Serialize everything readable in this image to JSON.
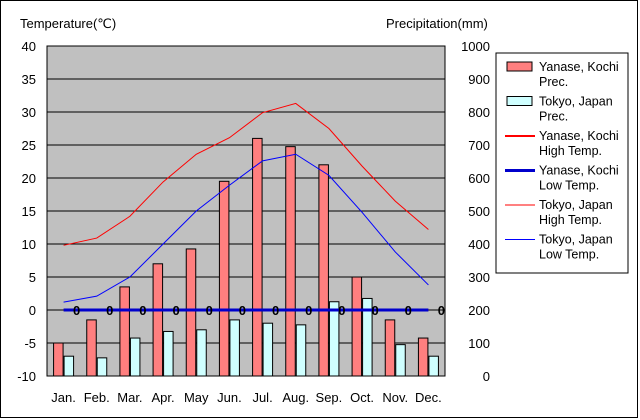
{
  "chart_data": {
    "type": "bar+line",
    "title": "",
    "categories": [
      "Jan.",
      "Feb.",
      "Mar.",
      "Apr.",
      "May",
      "Jun.",
      "Jul.",
      "Aug.",
      "Sep.",
      "Oct.",
      "Nov.",
      "Dec."
    ],
    "left_axis": {
      "label": "Temperature(℃)",
      "ylim": [
        -10,
        40
      ],
      "ticks": [
        -10,
        -5,
        0,
        5,
        10,
        15,
        20,
        25,
        30,
        35,
        40
      ]
    },
    "right_axis": {
      "label": "Precipitation(mm)",
      "ylim": [
        0,
        1000
      ],
      "ticks": [
        0,
        100,
        200,
        300,
        400,
        500,
        600,
        700,
        800,
        900,
        1000
      ]
    },
    "bar_series": [
      {
        "name": "Yanase, Kochi Prec.",
        "legend_lines": [
          "Yanase, Kochi",
          "Prec."
        ],
        "color": "#ff7f7f",
        "values": [
          100,
          170,
          270,
          340,
          385,
          590,
          720,
          695,
          640,
          300,
          170,
          115
        ]
      },
      {
        "name": "Tokyo, Japan Prec.",
        "legend_lines": [
          "Tokyo, Japan",
          "Prec."
        ],
        "color": "#cfffff",
        "values": [
          60,
          55,
          115,
          135,
          140,
          170,
          160,
          155,
          225,
          235,
          95,
          60
        ]
      }
    ],
    "line_series": [
      {
        "name": "Yanase, Kochi High Temp.",
        "legend_lines": [
          "Yanase, Kochi",
          "High Temp."
        ],
        "color": "#ff0000",
        "width": 2,
        "values": [
          0,
          0,
          0,
          0,
          0,
          0,
          0,
          0,
          0,
          0,
          0,
          0
        ]
      },
      {
        "name": "Yanase, Kochi Low Temp.",
        "legend_lines": [
          "Yanase, Kochi",
          "Low Temp."
        ],
        "color": "#0000cc",
        "width": 3,
        "values": [
          0,
          0,
          0,
          0,
          0,
          0,
          0,
          0,
          0,
          0,
          0,
          0
        ]
      },
      {
        "name": "Tokyo, Japan High Temp.",
        "legend_lines": [
          "Tokyo, Japan",
          "High Temp."
        ],
        "color": "#ff0000",
        "width": 1,
        "values": [
          9.8,
          10.9,
          14.2,
          19.4,
          23.6,
          26.1,
          29.9,
          31.3,
          27.5,
          21.8,
          16.5,
          12.2
        ]
      },
      {
        "name": "Tokyo, Japan Low Temp.",
        "legend_lines": [
          "Tokyo, Japan",
          "Low Temp."
        ],
        "color": "#0000ff",
        "width": 1,
        "values": [
          1.2,
          2.1,
          5.0,
          10.0,
          15.0,
          18.9,
          22.6,
          23.6,
          20.4,
          14.8,
          8.8,
          3.8
        ]
      }
    ],
    "markers": {
      "text": "0",
      "values": [
        0,
        0,
        0,
        0,
        0,
        0,
        0,
        0,
        0,
        0,
        0,
        0
      ]
    },
    "plot_background": "#c0c0c0",
    "grid": true,
    "legend_position": "right"
  }
}
